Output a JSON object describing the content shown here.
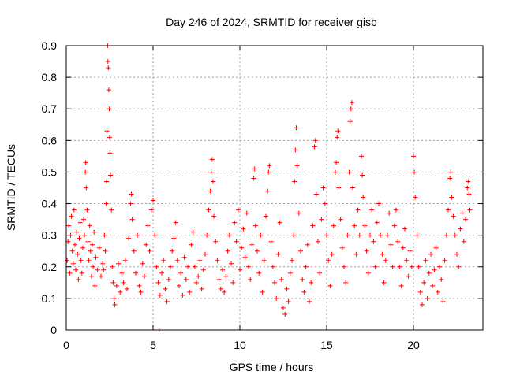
{
  "chart_data": {
    "type": "scatter",
    "title": "Day 246 of 2024, SRMTID for receiver gisb",
    "xlabel": "GPS time / hours",
    "ylabel": "SRMTID / TECUs",
    "xlim": [
      0,
      24
    ],
    "ylim": [
      0,
      0.9
    ],
    "x_ticks": [
      0,
      5,
      10,
      15,
      20
    ],
    "x_tick_labels": [
      "0",
      "5",
      "10",
      "15",
      "20"
    ],
    "y_ticks": [
      0,
      0.1,
      0.2,
      0.3,
      0.4,
      0.5,
      0.6,
      0.7,
      0.8,
      0.9
    ],
    "y_tick_labels": [
      "0",
      "0.1",
      "0.2",
      "0.3",
      "0.4",
      "0.5",
      "0.6",
      "0.7",
      "0.8",
      "0.9"
    ],
    "grid": true,
    "marker": "plus",
    "color": "#ff0000",
    "series": [
      {
        "name": "SRMTID",
        "points": [
          [
            0.05,
            0.22
          ],
          [
            0.1,
            0.28
          ],
          [
            0.15,
            0.33
          ],
          [
            0.2,
            0.18
          ],
          [
            0.25,
            0.3
          ],
          [
            0.3,
            0.36
          ],
          [
            0.35,
            0.25
          ],
          [
            0.4,
            0.21
          ],
          [
            0.45,
            0.38
          ],
          [
            0.5,
            0.27
          ],
          [
            0.55,
            0.19
          ],
          [
            0.6,
            0.31
          ],
          [
            0.65,
            0.24
          ],
          [
            0.7,
            0.16
          ],
          [
            0.75,
            0.29
          ],
          [
            0.8,
            0.34
          ],
          [
            0.85,
            0.22
          ],
          [
            0.9,
            0.18
          ],
          [
            0.95,
            0.26
          ],
          [
            1.0,
            0.35
          ],
          [
            1.05,
            0.3
          ],
          [
            1.1,
            0.5
          ],
          [
            1.12,
            0.53
          ],
          [
            1.15,
            0.45
          ],
          [
            1.2,
            0.38
          ],
          [
            1.25,
            0.28
          ],
          [
            1.3,
            0.22
          ],
          [
            1.35,
            0.33
          ],
          [
            1.4,
            0.25
          ],
          [
            1.45,
            0.17
          ],
          [
            1.5,
            0.27
          ],
          [
            1.55,
            0.2
          ],
          [
            1.6,
            0.31
          ],
          [
            1.65,
            0.14
          ],
          [
            1.7,
            0.23
          ],
          [
            1.8,
            0.19
          ],
          [
            1.9,
            0.26
          ],
          [
            2.0,
            0.17
          ],
          [
            2.1,
            0.21
          ],
          [
            2.15,
            0.19
          ],
          [
            2.2,
            0.3
          ],
          [
            2.25,
            0.25
          ],
          [
            2.3,
            0.4
          ],
          [
            2.32,
            0.47
          ],
          [
            2.35,
            0.63
          ],
          [
            2.38,
            0.9
          ],
          [
            2.4,
            0.85
          ],
          [
            2.42,
            0.83
          ],
          [
            2.45,
            0.76
          ],
          [
            2.48,
            0.7
          ],
          [
            2.5,
            0.61
          ],
          [
            2.52,
            0.56
          ],
          [
            2.55,
            0.49
          ],
          [
            2.6,
            0.38
          ],
          [
            2.65,
            0.2
          ],
          [
            2.7,
            0.15
          ],
          [
            2.75,
            0.1
          ],
          [
            2.8,
            0.08
          ],
          [
            2.9,
            0.14
          ],
          [
            3.0,
            0.21
          ],
          [
            3.1,
            0.12
          ],
          [
            3.2,
            0.18
          ],
          [
            3.3,
            0.15
          ],
          [
            3.4,
            0.22
          ],
          [
            3.5,
            0.13
          ],
          [
            3.6,
            0.29
          ],
          [
            3.7,
            0.4
          ],
          [
            3.75,
            0.43
          ],
          [
            3.8,
            0.35
          ],
          [
            3.9,
            0.25
          ],
          [
            4.0,
            0.18
          ],
          [
            4.1,
            0.3
          ],
          [
            4.2,
            0.14
          ],
          [
            4.3,
            0.12
          ],
          [
            4.4,
            0.21
          ],
          [
            4.5,
            0.17
          ],
          [
            4.6,
            0.27
          ],
          [
            4.7,
            0.33
          ],
          [
            4.8,
            0.25
          ],
          [
            4.9,
            0.38
          ],
          [
            5.0,
            0.41
          ],
          [
            5.1,
            0.3
          ],
          [
            5.2,
            0.2
          ],
          [
            5.3,
            0.15
          ],
          [
            5.35,
            0.0
          ],
          [
            5.4,
            0.11
          ],
          [
            5.5,
            0.18
          ],
          [
            5.6,
            0.22
          ],
          [
            5.7,
            0.13
          ],
          [
            5.8,
            0.09
          ],
          [
            5.9,
            0.16
          ],
          [
            6.0,
            0.2
          ],
          [
            6.1,
            0.25
          ],
          [
            6.2,
            0.29
          ],
          [
            6.3,
            0.34
          ],
          [
            6.4,
            0.22
          ],
          [
            6.5,
            0.14
          ],
          [
            6.6,
            0.18
          ],
          [
            6.7,
            0.11
          ],
          [
            6.8,
            0.23
          ],
          [
            6.9,
            0.16
          ],
          [
            7.0,
            0.2
          ],
          [
            7.1,
            0.12
          ],
          [
            7.2,
            0.27
          ],
          [
            7.3,
            0.31
          ],
          [
            7.4,
            0.2
          ],
          [
            7.5,
            0.15
          ],
          [
            7.6,
            0.17
          ],
          [
            7.7,
            0.22
          ],
          [
            7.8,
            0.13
          ],
          [
            7.9,
            0.19
          ],
          [
            8.0,
            0.24
          ],
          [
            8.1,
            0.3
          ],
          [
            8.2,
            0.38
          ],
          [
            8.3,
            0.44
          ],
          [
            8.35,
            0.5
          ],
          [
            8.4,
            0.54
          ],
          [
            8.45,
            0.47
          ],
          [
            8.5,
            0.36
          ],
          [
            8.6,
            0.28
          ],
          [
            8.7,
            0.22
          ],
          [
            8.8,
            0.16
          ],
          [
            8.9,
            0.13
          ],
          [
            9.0,
            0.19
          ],
          [
            9.1,
            0.12
          ],
          [
            9.2,
            0.17
          ],
          [
            9.3,
            0.25
          ],
          [
            9.4,
            0.3
          ],
          [
            9.5,
            0.21
          ],
          [
            9.6,
            0.15
          ],
          [
            9.7,
            0.34
          ],
          [
            9.8,
            0.28
          ],
          [
            9.9,
            0.38
          ],
          [
            10.0,
            0.19
          ],
          [
            10.1,
            0.26
          ],
          [
            10.2,
            0.32
          ],
          [
            10.3,
            0.23
          ],
          [
            10.4,
            0.37
          ],
          [
            10.5,
            0.2
          ],
          [
            10.6,
            0.16
          ],
          [
            10.7,
            0.27
          ],
          [
            10.8,
            0.48
          ],
          [
            10.85,
            0.51
          ],
          [
            10.9,
            0.33
          ],
          [
            11.0,
            0.25
          ],
          [
            11.1,
            0.18
          ],
          [
            11.2,
            0.3
          ],
          [
            11.3,
            0.12
          ],
          [
            11.4,
            0.22
          ],
          [
            11.5,
            0.36
          ],
          [
            11.6,
            0.44
          ],
          [
            11.65,
            0.5
          ],
          [
            11.7,
            0.52
          ],
          [
            11.8,
            0.28
          ],
          [
            11.9,
            0.2
          ],
          [
            12.0,
            0.15
          ],
          [
            12.1,
            0.1
          ],
          [
            12.2,
            0.24
          ],
          [
            12.3,
            0.34
          ],
          [
            12.4,
            0.16
          ],
          [
            12.5,
            0.07
          ],
          [
            12.6,
            0.05
          ],
          [
            12.7,
            0.13
          ],
          [
            12.8,
            0.09
          ],
          [
            12.9,
            0.18
          ],
          [
            13.0,
            0.22
          ],
          [
            13.1,
            0.3
          ],
          [
            13.15,
            0.47
          ],
          [
            13.2,
            0.57
          ],
          [
            13.25,
            0.64
          ],
          [
            13.3,
            0.52
          ],
          [
            13.4,
            0.37
          ],
          [
            13.5,
            0.25
          ],
          [
            13.6,
            0.16
          ],
          [
            13.7,
            0.12
          ],
          [
            13.8,
            0.2
          ],
          [
            13.9,
            0.27
          ],
          [
            14.0,
            0.09
          ],
          [
            14.1,
            0.15
          ],
          [
            14.2,
            0.33
          ],
          [
            14.3,
            0.58
          ],
          [
            14.35,
            0.6
          ],
          [
            14.4,
            0.43
          ],
          [
            14.5,
            0.28
          ],
          [
            14.6,
            0.18
          ],
          [
            14.7,
            0.35
          ],
          [
            14.8,
            0.45
          ],
          [
            14.9,
            0.4
          ],
          [
            15.0,
            0.3
          ],
          [
            15.1,
            0.22
          ],
          [
            15.2,
            0.14
          ],
          [
            15.3,
            0.24
          ],
          [
            15.4,
            0.33
          ],
          [
            15.5,
            0.5
          ],
          [
            15.55,
            0.53
          ],
          [
            15.6,
            0.61
          ],
          [
            15.65,
            0.63
          ],
          [
            15.7,
            0.45
          ],
          [
            15.8,
            0.35
          ],
          [
            15.9,
            0.26
          ],
          [
            16.0,
            0.2
          ],
          [
            16.1,
            0.15
          ],
          [
            16.2,
            0.3
          ],
          [
            16.3,
            0.5
          ],
          [
            16.35,
            0.66
          ],
          [
            16.4,
            0.7
          ],
          [
            16.45,
            0.72
          ],
          [
            16.5,
            0.45
          ],
          [
            16.6,
            0.33
          ],
          [
            16.7,
            0.24
          ],
          [
            16.8,
            0.38
          ],
          [
            16.9,
            0.3
          ],
          [
            17.0,
            0.55
          ],
          [
            17.05,
            0.49
          ],
          [
            17.1,
            0.42
          ],
          [
            17.2,
            0.33
          ],
          [
            17.3,
            0.25
          ],
          [
            17.4,
            0.18
          ],
          [
            17.5,
            0.3
          ],
          [
            17.6,
            0.38
          ],
          [
            17.7,
            0.28
          ],
          [
            17.8,
            0.2
          ],
          [
            17.9,
            0.34
          ],
          [
            18.0,
            0.4
          ],
          [
            18.1,
            0.3
          ],
          [
            18.2,
            0.24
          ],
          [
            18.3,
            0.15
          ],
          [
            18.4,
            0.22
          ],
          [
            18.5,
            0.3
          ],
          [
            18.6,
            0.37
          ],
          [
            18.7,
            0.27
          ],
          [
            18.8,
            0.2
          ],
          [
            18.9,
            0.33
          ],
          [
            19.0,
            0.38
          ],
          [
            19.1,
            0.28
          ],
          [
            19.2,
            0.2
          ],
          [
            19.3,
            0.14
          ],
          [
            19.4,
            0.26
          ],
          [
            19.5,
            0.32
          ],
          [
            19.6,
            0.22
          ],
          [
            19.7,
            0.17
          ],
          [
            19.8,
            0.25
          ],
          [
            19.9,
            0.2
          ],
          [
            20.0,
            0.55
          ],
          [
            20.05,
            0.5
          ],
          [
            20.1,
            0.42
          ],
          [
            20.2,
            0.3
          ],
          [
            20.3,
            0.2
          ],
          [
            20.4,
            0.12
          ],
          [
            20.5,
            0.08
          ],
          [
            20.6,
            0.15
          ],
          [
            20.7,
            0.22
          ],
          [
            20.8,
            0.1
          ],
          [
            20.9,
            0.18
          ],
          [
            21.0,
            0.24
          ],
          [
            21.1,
            0.14
          ],
          [
            21.2,
            0.19
          ],
          [
            21.3,
            0.26
          ],
          [
            21.4,
            0.12
          ],
          [
            21.5,
            0.2
          ],
          [
            21.6,
            0.16
          ],
          [
            21.7,
            0.09
          ],
          [
            21.8,
            0.22
          ],
          [
            21.9,
            0.3
          ],
          [
            22.0,
            0.38
          ],
          [
            22.1,
            0.48
          ],
          [
            22.15,
            0.5
          ],
          [
            22.2,
            0.42
          ],
          [
            22.3,
            0.36
          ],
          [
            22.4,
            0.3
          ],
          [
            22.5,
            0.24
          ],
          [
            22.6,
            0.2
          ],
          [
            22.7,
            0.32
          ],
          [
            22.8,
            0.37
          ],
          [
            22.9,
            0.28
          ],
          [
            23.0,
            0.35
          ],
          [
            23.1,
            0.45
          ],
          [
            23.15,
            0.47
          ],
          [
            23.2,
            0.43
          ],
          [
            23.25,
            0.38
          ]
        ]
      }
    ]
  }
}
